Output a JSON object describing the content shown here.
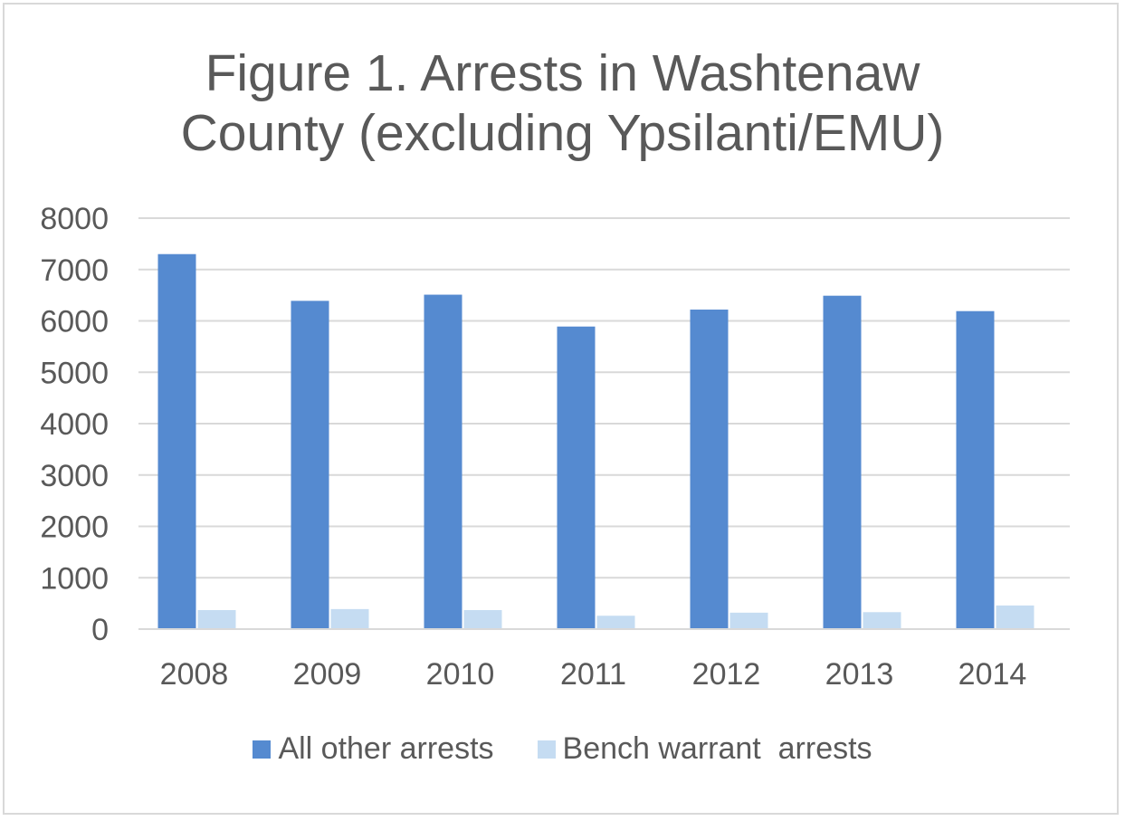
{
  "chart_data": {
    "type": "bar",
    "title_lines": [
      "Figure 1. Arrests in Washtenaw",
      "County (excluding Ypsilanti/EMU)"
    ],
    "categories": [
      "2008",
      "2009",
      "2010",
      "2011",
      "2012",
      "2013",
      "2014"
    ],
    "series": [
      {
        "name": "All other arrests",
        "color": "#558ad0",
        "values": [
          7300,
          6390,
          6510,
          5890,
          6220,
          6490,
          6190
        ]
      },
      {
        "name": "Bench warrant  arrests",
        "color": "#c5dcf2",
        "values": [
          370,
          390,
          370,
          260,
          320,
          330,
          460
        ]
      }
    ],
    "ylim": [
      0,
      8000
    ],
    "yticks": [
      "0",
      "1000",
      "2000",
      "3000",
      "4000",
      "5000",
      "6000",
      "7000",
      "8000"
    ],
    "grid": true,
    "gridline_color": "#d9d9d9",
    "text_color": "#595959",
    "legend_position": "bottom"
  }
}
